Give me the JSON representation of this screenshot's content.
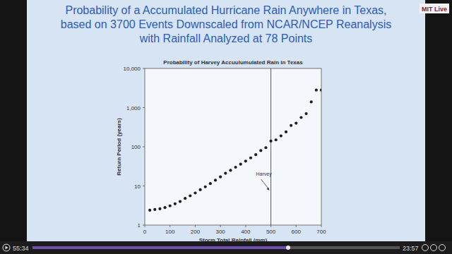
{
  "chart_data": {
    "type": "scatter",
    "title": [
      "Probability of a Accumulated Hurricane Rain Anywhere in Texas,",
      "based on 3700 Events Downscaled from NCAR/NCEP Reanalysis",
      "with Rainfall Analyzed at 78 Points"
    ],
    "subtitle": "Probability of Harvey Accuulumulated Rain in Texas",
    "x_label": "Storm Total Rainfall (mm)",
    "y_label": "Return Period (years)",
    "x": [
      20,
      40,
      60,
      80,
      100,
      120,
      140,
      160,
      180,
      200,
      220,
      240,
      260,
      280,
      300,
      320,
      340,
      360,
      380,
      400,
      420,
      440,
      460,
      480,
      500,
      520,
      540,
      560,
      580,
      600,
      620,
      640,
      660,
      680,
      700
    ],
    "values": [
      2.4,
      2.5,
      2.6,
      2.8,
      3.1,
      3.5,
      4.0,
      4.8,
      5.6,
      6.6,
      8.0,
      9.5,
      11.5,
      14,
      17,
      21,
      25,
      30,
      36,
      43,
      52,
      63,
      80,
      95,
      140,
      150,
      190,
      240,
      350,
      400,
      560,
      700,
      1400,
      2800,
      2800
    ],
    "color": "#1e1e1e",
    "marker": "circle",
    "xlim": [
      0,
      700
    ],
    "xticks": [
      0,
      100,
      200,
      300,
      400,
      500,
      600,
      700
    ],
    "ylim": [
      1,
      10000
    ],
    "yticks": [
      1,
      10,
      100,
      {
        "value": 1000,
        "label": "1,000"
      },
      {
        "value": 10000,
        "label": "10,000"
      }
    ],
    "log": "y",
    "grid": false,
    "annotations": [
      {
        "text": "Harvey",
        "x": 500
      }
    ]
  },
  "player": {
    "elapsed": "55:34",
    "remaining": "23:57",
    "logo": "MIT Live"
  }
}
